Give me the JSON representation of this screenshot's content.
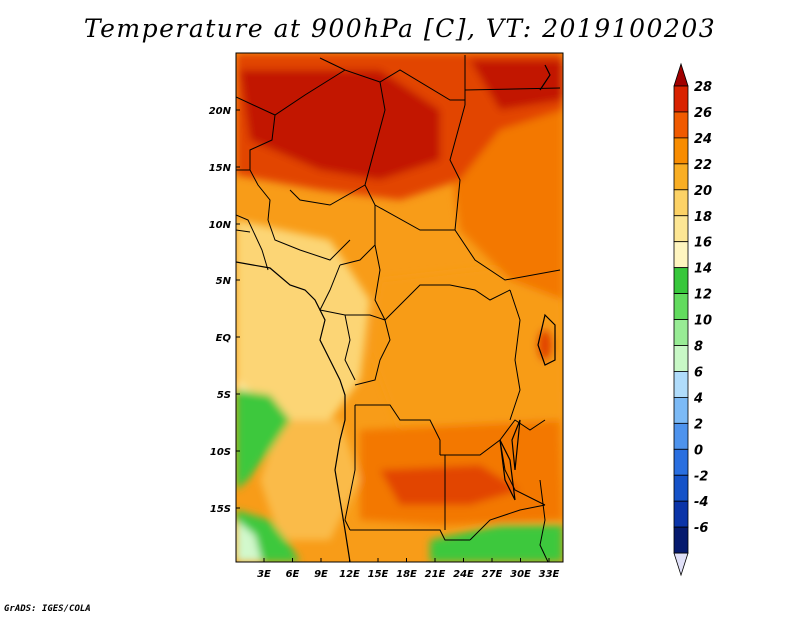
{
  "title": "Temperature at 900hPa [C], VT: 2019100203",
  "credit": "GrADS: IGES/COLA",
  "map": {
    "lat_labels": [
      "20N",
      "15N",
      "10N",
      "5N",
      "EQ",
      "5S",
      "10S",
      "15S"
    ],
    "lon_labels": [
      "3E",
      "6E",
      "9E",
      "12E",
      "15E",
      "18E",
      "21E",
      "24E",
      "27E",
      "30E",
      "33E"
    ]
  },
  "colorbar": {
    "units": "C",
    "levels": [
      "28",
      "26",
      "24",
      "22",
      "20",
      "18",
      "16",
      "14",
      "12",
      "10",
      "8",
      "6",
      "4",
      "2",
      "0",
      "-2",
      "-4",
      "-6"
    ],
    "colors": [
      "#a00000",
      "#d92200",
      "#f05a00",
      "#f88c00",
      "#f9ae24",
      "#fcd266",
      "#fde694",
      "#fff5c0",
      "#37c73b",
      "#62db5e",
      "#98ec95",
      "#c8f8c6",
      "#b0dcfb",
      "#7cbaf6",
      "#4e93ed",
      "#2a6fe0",
      "#1552c8",
      "#0b34a8",
      "#061a6e",
      "#e0e0f8"
    ]
  },
  "map_colors": {
    "t28": "#c21800",
    "t26": "#e24400",
    "t24": "#f37800",
    "t22": "#f89c18",
    "t20": "#fabb48",
    "t18": "#fcd574",
    "t16": "#feeaa0",
    "t14": "#3dc83e",
    "t12": "#6edc69",
    "t10": "#9eed98",
    "t8": "#d2f8cc"
  }
}
